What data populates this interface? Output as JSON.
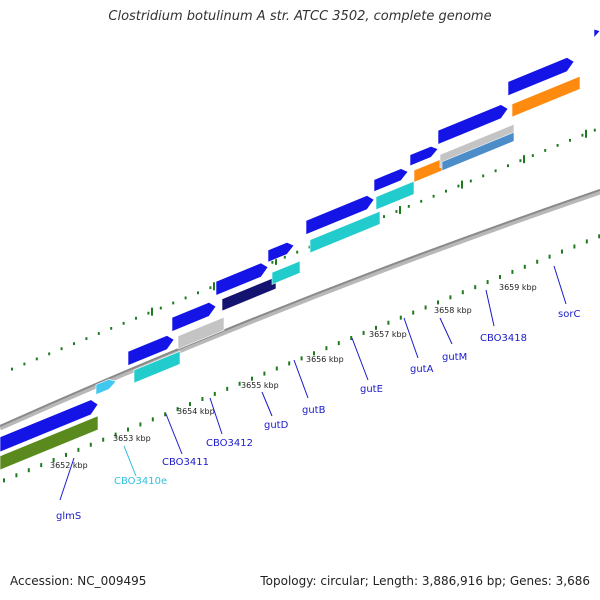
{
  "title": "Clostridium botulinum A str. ATCC 3502, complete genome",
  "footer": {
    "accession": "Accession: NC_009495",
    "summary": "Topology: circular; Length: 3,886,916 bp; Genes: 3,686"
  },
  "colors": {
    "backbone": "#8a8a8a",
    "tick": "#1e7a1e",
    "label_blue": "#1a1ac8",
    "label_cyan": "#33c0dd",
    "blue": "#1414e6",
    "light_blue": "#41c8f0",
    "cyan": "#22cccc",
    "gray": "#c4c4c4",
    "navy": "#141470",
    "orange": "#ff8a10",
    "steel": "#4c8cc8",
    "olive": "#5a8a1e"
  },
  "tick_labels": [
    "3652 kbp",
    "3653 kbp",
    "3654 kbp",
    "3655 kbp",
    "3656 kbp",
    "3657 kbp",
    "3658 kbp",
    "3659 kbp"
  ],
  "gene_labels": [
    {
      "text": "glmS",
      "color": "blue"
    },
    {
      "text": "CBO3410e",
      "color": "cyan"
    },
    {
      "text": "CBO3411",
      "color": "blue"
    },
    {
      "text": "CBO3412",
      "color": "blue"
    },
    {
      "text": "gutD",
      "color": "blue"
    },
    {
      "text": "gutB",
      "color": "blue"
    },
    {
      "text": "gutE",
      "color": "blue"
    },
    {
      "text": "gutA",
      "color": "blue"
    },
    {
      "text": "gutM",
      "color": "blue"
    },
    {
      "text": "CBO3418",
      "color": "blue"
    },
    {
      "text": "sorC",
      "color": "blue"
    }
  ]
}
